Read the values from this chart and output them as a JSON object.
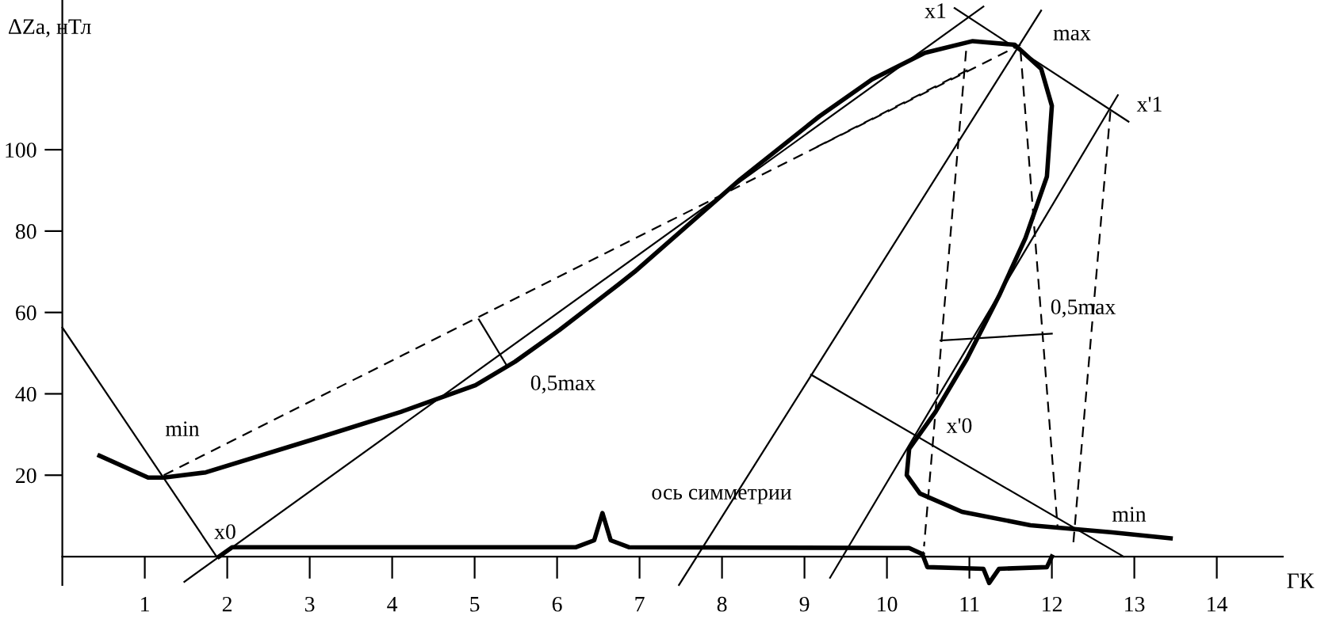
{
  "chart_data": {
    "type": "line",
    "xlabel": "ГК",
    "ylabel": "ΔZa, нТл",
    "xlim": [
      0,
      14.8
    ],
    "ylim": [
      -7,
      136.8
    ],
    "xticks": [
      1,
      2,
      3,
      4,
      5,
      6,
      7,
      8,
      9,
      10,
      11,
      12,
      13,
      14
    ],
    "yticks": [
      20,
      40,
      60,
      80,
      100
    ],
    "grid": false,
    "legend": false,
    "marker": "none",
    "series": [
      {
        "color": "#000000",
        "line_style": "solid",
        "x": [
          0.45,
          1.04,
          1.23,
          1.74,
          3.09,
          4.11,
          5.01,
          5.49,
          6.03,
          6.74,
          6.94,
          8.22,
          9.18,
          9.82,
          10.46,
          11.04,
          11.55,
          11.87,
          12.0,
          11.94,
          11.68,
          11.36,
          10.97,
          10.59,
          10.27,
          10.24,
          10.4,
          10.91,
          11.74,
          12.71,
          13.44
        ],
        "values": [
          24.8,
          19.4,
          19.4,
          20.7,
          29.1,
          35.6,
          42.1,
          47.9,
          55.7,
          66.8,
          70.0,
          92.7,
          108.2,
          117.3,
          123.8,
          126.7,
          125.8,
          119.9,
          110.8,
          93.4,
          78.3,
          64.1,
          48.6,
          35.6,
          26.5,
          20.0,
          15.5,
          11.0,
          7.7,
          6.0,
          4.5
        ]
      },
      {
        "color": "#000000",
        "line_style": "solid",
        "x": [
          1.9,
          2.06,
          6.23,
          6.45,
          6.55,
          6.65,
          6.87,
          10.27,
          10.43
        ],
        "values": [
          0,
          2.3,
          2.3,
          4.0,
          10.7,
          4.0,
          2.3,
          2.1,
          0.6
        ]
      },
      {
        "color": "#000000",
        "line_style": "solid",
        "x": [
          10.43,
          10.49,
          11.17,
          11.24,
          11.36,
          11.94,
          12.0
        ],
        "values": [
          0.6,
          -2.6,
          -3.0,
          -6.5,
          -3.0,
          -2.6,
          0
        ]
      },
      {
        "color": "#000000",
        "line_style": "solid",
        "x": [
          0,
          1.87
        ],
        "values": [
          56.3,
          0
        ]
      },
      {
        "color": "#000000",
        "line_style": "solid",
        "x": [
          1.48,
          11.17
        ],
        "values": [
          -6.2,
          135.2
        ]
      },
      {
        "color": "#000000",
        "line_style": "dashed",
        "x": [
          1.23,
          11.62
        ],
        "values": [
          20.0,
          125.8
        ]
      },
      {
        "color": "#000000",
        "line_style": "solid",
        "x": [
          5.05,
          5.4
        ],
        "values": [
          58.3,
          46.6
        ]
      },
      {
        "color": "#000000",
        "line_style": "solid",
        "x": [
          10.82,
          12.93
        ],
        "values": [
          134.8,
          106.9
        ]
      },
      {
        "color": "#000000",
        "line_style": "solid",
        "x": [
          11.87,
          7.478
        ],
        "values": [
          134.2,
          -7
        ]
      },
      {
        "color": "#000000",
        "line_style": "solid",
        "x": [
          12.8,
          9.31
        ],
        "values": [
          113.4,
          -5.2
        ]
      },
      {
        "color": "#000000",
        "line_style": "solid",
        "x": [
          9.08,
          12.87
        ],
        "values": [
          44.7,
          0
        ]
      },
      {
        "color": "#000000",
        "line_style": "dashed",
        "x": [
          10.96,
          10.45
        ],
        "values": [
          124.3,
          2.5
        ]
      },
      {
        "color": "#000000",
        "line_style": "dashed",
        "x": [
          11.62,
          12.07
        ],
        "values": [
          124.3,
          7.1
        ]
      },
      {
        "color": "#000000",
        "line_style": "dashed",
        "x": [
          12.71,
          12.26
        ],
        "values": [
          109.5,
          3.2
        ]
      },
      {
        "color": "#000000",
        "line_style": "dashed",
        "x": [
          9.15,
          11.03
        ],
        "values": [
          100.7,
          120.1
        ]
      },
      {
        "color": "#000000",
        "line_style": "solid",
        "x": [
          10.65,
          12.0
        ],
        "values": [
          53.1,
          54.8
        ]
      }
    ],
    "annotations": [
      "min",
      "x0",
      "0,5max",
      "ось симметрии",
      "x'0",
      "0,5max",
      "x1",
      "max",
      "x'1",
      "min"
    ]
  }
}
